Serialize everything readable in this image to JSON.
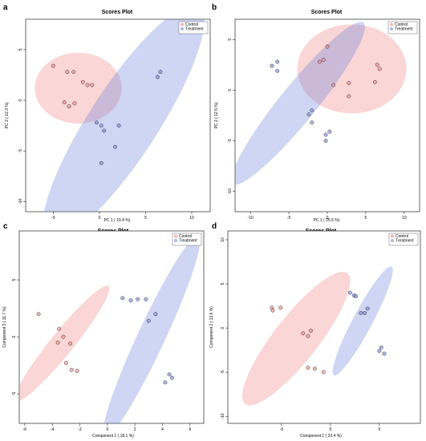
{
  "chart_data": [
    {
      "panel": "a",
      "type": "scatter",
      "title": "Scores Plot",
      "xlabel": "PC 1 ( 19.4 %)",
      "ylabel": "PC 2 ( 12.3 %)",
      "xlim": [
        -8,
        12
      ],
      "ylim": [
        -11,
        8
      ],
      "xticks": [
        -5,
        0,
        5,
        10
      ],
      "yticks": [
        -10,
        -5,
        0,
        5
      ],
      "legend_position": "top-right",
      "series": [
        {
          "name": "Control",
          "color": "#f08080",
          "x": [
            -5.0,
            -3.5,
            -2.8,
            -1.8,
            -1.3,
            -0.8,
            -3.8,
            -3.3,
            -2.7
          ],
          "y": [
            3.4,
            2.8,
            2.8,
            1.8,
            1.5,
            1.5,
            -0.2,
            -0.6,
            -0.3
          ],
          "ellipse": {
            "cx": -2.3,
            "cy": 1.2,
            "rx": 4.7,
            "ry": 3.5,
            "angle": 0
          }
        },
        {
          "name": "Treatment",
          "color": "#6a7fdb",
          "x": [
            6.6,
            6.3,
            -0.3,
            0.2,
            0.5,
            2.1,
            1.7,
            0.2
          ],
          "y": [
            2.8,
            2.3,
            -2.2,
            -2.5,
            -3.0,
            -2.5,
            -4.6,
            -6.2
          ],
          "ellipse": {
            "cx": 2.6,
            "cy": -2.2,
            "rx": 15,
            "ry": 3.4,
            "angle": 57
          }
        }
      ]
    },
    {
      "panel": "b",
      "type": "scatter",
      "title": "Scores Plot",
      "xlabel": "PC 1 ( 25.5 %)",
      "ylabel": "PC 2 ( 12.5 %)",
      "xlim": [
        -12,
        12
      ],
      "ylim": [
        -12,
        7
      ],
      "xticks": [
        -10,
        -5,
        0,
        5,
        10
      ],
      "yticks": [
        -10,
        -5,
        0,
        5
      ],
      "legend_position": "top-right",
      "series": [
        {
          "name": "Control",
          "color": "#f08080",
          "x": [
            -0.5,
            -1.0,
            0.0,
            6.5,
            6.8,
            0.8,
            2.8,
            2.8,
            6.2
          ],
          "y": [
            3.0,
            2.8,
            4.3,
            2.5,
            2.1,
            0.5,
            0.7,
            -0.6,
            0.8
          ],
          "ellipse": {
            "cx": 3.2,
            "cy": 2.1,
            "rx": 7.1,
            "ry": 4.4,
            "angle": 0
          }
        },
        {
          "name": "Treatment",
          "color": "#6a7fdb",
          "x": [
            -6.5,
            -7.2,
            -6.5,
            -2.0,
            -2.4,
            -2.0,
            -0.2,
            0.3,
            -0.2
          ],
          "y": [
            2.8,
            2.4,
            1.9,
            -2.0,
            -2.4,
            -3.2,
            -4.4,
            -4.1,
            -5.0
          ],
          "ellipse": {
            "cx": -3.8,
            "cy": -1.3,
            "rx": 13.5,
            "ry": 1.8,
            "angle": 51
          }
        }
      ]
    },
    {
      "panel": "c",
      "type": "scatter",
      "title": "Scores Plot",
      "xlabel": "Component 1 ( 18.1 %)",
      "ylabel": "Component 2 ( 11.7 %)",
      "xlim": [
        -6.4,
        7
      ],
      "ylim": [
        -7.6,
        9.3
      ],
      "xticks": [
        -6,
        -4,
        -2,
        0,
        2,
        4,
        6
      ],
      "yticks": [
        -5,
        0,
        5
      ],
      "legend_position": "top-right",
      "series": [
        {
          "name": "Control",
          "color": "#f08080",
          "x": [
            -5.0,
            -3.5,
            -3.2,
            -3.6,
            -2.7,
            -3.0,
            -2.6,
            -2.2
          ],
          "y": [
            2.0,
            0.7,
            0.0,
            -0.5,
            -0.6,
            -2.3,
            -2.9,
            -3.0
          ],
          "ellipse": {
            "cx": -3.3,
            "cy": -0.6,
            "rx": 5.4,
            "ry": 1.0,
            "angle": 51
          }
        },
        {
          "name": "Treatment",
          "color": "#6a7fdb",
          "x": [
            1.1,
            1.7,
            2.2,
            2.8,
            3.5,
            3.0,
            4.5,
            4.7,
            4.2
          ],
          "y": [
            3.4,
            3.2,
            3.3,
            3.3,
            2.0,
            1.4,
            -3.3,
            -3.6,
            -4.0
          ],
          "ellipse": {
            "cx": 3.2,
            "cy": 0.0,
            "rx": 8.1,
            "ry": 1.2,
            "angle": 65
          }
        }
      ]
    },
    {
      "panel": "d",
      "type": "scatter",
      "title": "Scores Plot",
      "xlabel": "Component 1 ( 23.4 %)",
      "ylabel": "Component 2 ( 13.6 %)",
      "xlim": [
        -10.5,
        9.2
      ],
      "ylim": [
        -10.8,
        11
      ],
      "xticks": [
        -5,
        0,
        5
      ],
      "yticks": [
        -10,
        -5,
        0,
        5,
        10
      ],
      "legend_position": "top-right",
      "series": [
        {
          "name": "Control",
          "color": "#f08080",
          "x": [
            -6.0,
            -5.1,
            -5.9,
            -2.8,
            -2.3,
            -2.0,
            -2.3,
            -1.6,
            -0.7
          ],
          "y": [
            2.3,
            2.3,
            2.0,
            -0.6,
            -0.9,
            -0.3,
            -4.5,
            -4.6,
            -5.0
          ],
          "ellipse": {
            "cx": -3.5,
            "cy": -1.2,
            "rx": 8.5,
            "ry": 2.5,
            "angle": 52
          }
        },
        {
          "name": "Treatment",
          "color": "#6a7fdb",
          "x": [
            2.0,
            2.4,
            2.6,
            3.1,
            3.5,
            3.8,
            5.0,
            5.2,
            5.5
          ],
          "y": [
            4.0,
            3.7,
            3.6,
            1.7,
            1.7,
            2.2,
            -2.6,
            -2.2,
            -2.9
          ],
          "ellipse": {
            "cx": 3.3,
            "cy": 0.8,
            "rx": 6.3,
            "ry": 1.1,
            "angle": 62
          }
        }
      ]
    }
  ],
  "figure": {
    "panel_letters": [
      "a",
      "b",
      "c",
      "d"
    ]
  }
}
